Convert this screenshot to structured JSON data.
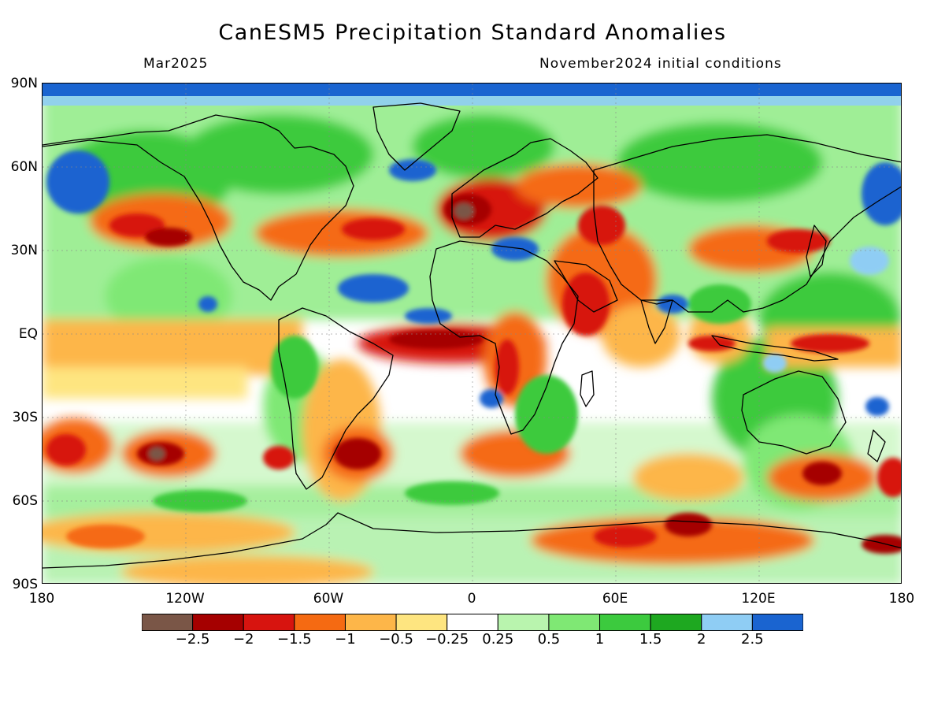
{
  "title": "CanESM5 Precipitation Standard Anomalies",
  "subtitle_left": "Mar2025",
  "subtitle_right": "November2024 initial conditions",
  "lat_labels": [
    "90N",
    "60N",
    "30N",
    "EQ",
    "30S",
    "60S",
    "90S"
  ],
  "lon_labels": [
    "180",
    "120W",
    "60W",
    "0",
    "60E",
    "120E",
    "180"
  ],
  "colorbar": {
    "colors": [
      "#7a5647",
      "#a50000",
      "#d7140f",
      "#f56a12",
      "#fdb649",
      "#fee580",
      "#ffffff",
      "#b9f4ae",
      "#7fe874",
      "#3cca3e",
      "#1ea820",
      "#8fcdf4",
      "#1a64d0"
    ],
    "labels": [
      "−2.5",
      "−2",
      "−1.5",
      "−1",
      "−0.5",
      "−0.25",
      "0.25",
      "0.5",
      "1",
      "1.5",
      "2",
      "2.5"
    ]
  },
  "map": {
    "lat_range": [
      -90,
      90
    ],
    "lon_range": [
      -180,
      180
    ]
  }
}
